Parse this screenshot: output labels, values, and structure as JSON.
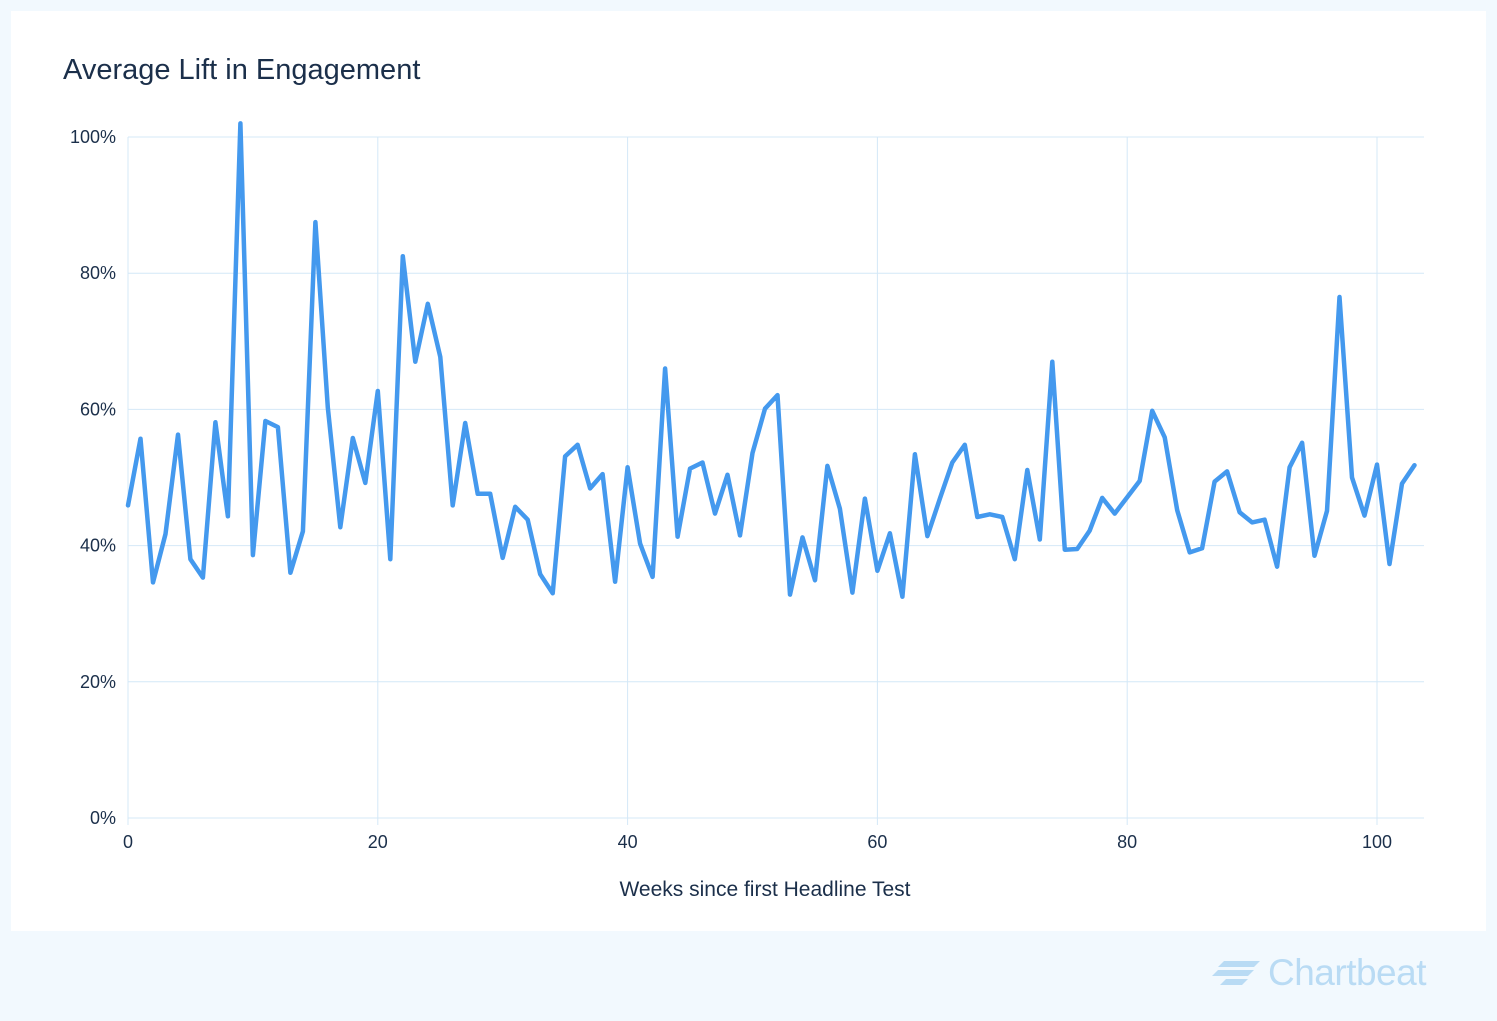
{
  "brand": {
    "name": "Chartbeat",
    "color": "#b9dbf4"
  },
  "colors": {
    "line": "#4499ee",
    "grid": "#d4e8f7",
    "text": "#1b2f4a",
    "background": "#f2f9fe",
    "card": "#ffffff"
  },
  "chart_data": {
    "type": "line",
    "title": "Average Lift in Engagement",
    "xlabel": "Weeks since first Headline Test",
    "ylabel": "",
    "xlim": [
      0,
      104
    ],
    "ylim": [
      0,
      100
    ],
    "xticks": [
      0,
      20,
      40,
      60,
      80,
      100
    ],
    "xtick_labels": [
      "0",
      "20",
      "40",
      "60",
      "80",
      "100"
    ],
    "yticks": [
      0,
      20,
      40,
      60,
      80,
      100
    ],
    "ytick_labels": [
      "0%",
      "20%",
      "40%",
      "60%",
      "80%",
      "100%"
    ],
    "grid": true,
    "series": [
      {
        "x": [
          0,
          1,
          2,
          3,
          4,
          5,
          6,
          7,
          8,
          9,
          10,
          11,
          12,
          13,
          14,
          15,
          16,
          17,
          18,
          19,
          20,
          21,
          22,
          23,
          24,
          25,
          26,
          27,
          28,
          29,
          30,
          31,
          32,
          33,
          34,
          35,
          36,
          37,
          38,
          39,
          40,
          41,
          42,
          43,
          44,
          45,
          46,
          47,
          48,
          49,
          50,
          51,
          52,
          53,
          54,
          55,
          56,
          57,
          58,
          59,
          60,
          61,
          62,
          63,
          64,
          65,
          66,
          67,
          68,
          69,
          70,
          71,
          72,
          73,
          74,
          75,
          76,
          77,
          78,
          79,
          80,
          81,
          82,
          83,
          84,
          85,
          86,
          87,
          88,
          89,
          90,
          91,
          92,
          93,
          94,
          95,
          96,
          97,
          98,
          99,
          100,
          101,
          102,
          103
        ],
        "values": [
          45.9,
          55.7,
          34.6,
          41.7,
          56.3,
          38.0,
          35.3,
          58.1,
          44.3,
          102.0,
          38.6,
          58.3,
          57.4,
          36.0,
          42.1,
          87.5,
          60.3,
          42.7,
          55.8,
          49.2,
          62.7,
          38.0,
          82.5,
          67.0,
          75.5,
          67.7,
          45.9,
          58.0,
          47.6,
          47.6,
          38.2,
          45.7,
          43.8,
          35.8,
          33.0,
          53.1,
          54.8,
          48.4,
          50.5,
          34.7,
          51.5,
          40.3,
          35.4,
          66.0,
          41.3,
          51.3,
          52.2,
          44.7,
          50.4,
          41.5,
          53.6,
          60.1,
          62.1,
          32.8,
          41.2,
          34.9,
          51.7,
          45.4,
          33.1,
          46.9,
          36.3,
          41.8,
          32.5,
          53.4,
          41.4,
          46.9,
          52.2,
          54.8,
          44.2,
          44.6,
          44.2,
          38.0,
          51.1,
          40.9,
          67.0,
          39.4,
          39.5,
          42.2,
          47.0,
          44.7,
          47.1,
          49.5,
          59.8,
          55.9,
          45.2,
          39.0,
          39.6,
          49.4,
          50.9,
          44.9,
          43.4,
          43.8,
          36.9,
          51.5,
          55.1,
          38.5,
          45.1,
          76.5,
          50.0,
          44.4,
          51.9,
          37.3,
          49.1,
          51.8
        ]
      }
    ]
  }
}
